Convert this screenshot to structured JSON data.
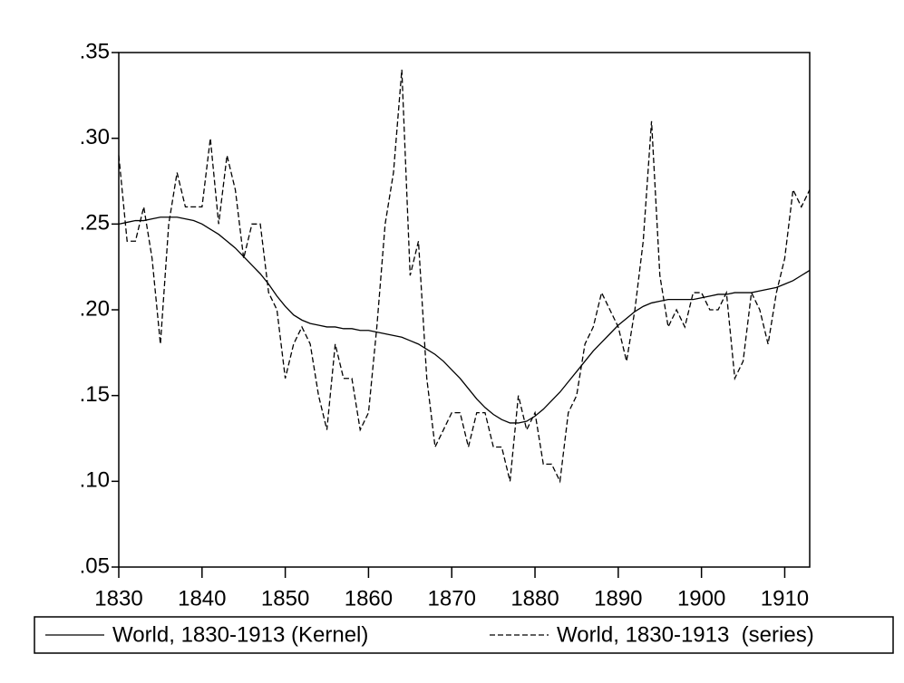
{
  "chart_data": {
    "type": "line",
    "x": [
      1830,
      1831,
      1832,
      1833,
      1834,
      1835,
      1836,
      1837,
      1838,
      1839,
      1840,
      1841,
      1842,
      1843,
      1844,
      1845,
      1846,
      1847,
      1848,
      1849,
      1850,
      1851,
      1852,
      1853,
      1854,
      1855,
      1856,
      1857,
      1858,
      1859,
      1860,
      1861,
      1862,
      1863,
      1864,
      1865,
      1866,
      1867,
      1868,
      1869,
      1870,
      1871,
      1872,
      1873,
      1874,
      1875,
      1876,
      1877,
      1878,
      1879,
      1880,
      1881,
      1882,
      1883,
      1884,
      1885,
      1886,
      1887,
      1888,
      1889,
      1890,
      1891,
      1892,
      1893,
      1894,
      1895,
      1896,
      1897,
      1898,
      1899,
      1900,
      1901,
      1902,
      1903,
      1904,
      1905,
      1906,
      1907,
      1908,
      1909,
      1910,
      1911,
      1912,
      1913
    ],
    "series": [
      {
        "name": "World, 1830-1913 (Kernel)",
        "color": "#000000",
        "style": "solid",
        "values": [
          0.25,
          0.251,
          0.252,
          0.252,
          0.253,
          0.254,
          0.254,
          0.254,
          0.253,
          0.252,
          0.25,
          0.247,
          0.244,
          0.24,
          0.236,
          0.231,
          0.226,
          0.221,
          0.215,
          0.208,
          0.202,
          0.197,
          0.194,
          0.192,
          0.191,
          0.19,
          0.19,
          0.189,
          0.189,
          0.188,
          0.188,
          0.187,
          0.186,
          0.185,
          0.184,
          0.182,
          0.18,
          0.177,
          0.174,
          0.17,
          0.165,
          0.16,
          0.154,
          0.148,
          0.143,
          0.139,
          0.136,
          0.134,
          0.134,
          0.135,
          0.138,
          0.142,
          0.147,
          0.152,
          0.158,
          0.164,
          0.17,
          0.176,
          0.181,
          0.186,
          0.191,
          0.195,
          0.199,
          0.202,
          0.204,
          0.205,
          0.206,
          0.206,
          0.206,
          0.206,
          0.207,
          0.208,
          0.209,
          0.209,
          0.21,
          0.21,
          0.21,
          0.211,
          0.212,
          0.213,
          0.215,
          0.217,
          0.22,
          0.223
        ]
      },
      {
        "name": "World, 1830-1913  (series)",
        "color": "#000000",
        "style": "dashed",
        "values": [
          0.29,
          0.24,
          0.24,
          0.26,
          0.23,
          0.18,
          0.25,
          0.28,
          0.26,
          0.26,
          0.26,
          0.3,
          0.25,
          0.29,
          0.27,
          0.23,
          0.25,
          0.25,
          0.21,
          0.2,
          0.16,
          0.18,
          0.19,
          0.18,
          0.15,
          0.13,
          0.18,
          0.16,
          0.16,
          0.13,
          0.14,
          0.19,
          0.25,
          0.28,
          0.34,
          0.22,
          0.24,
          0.16,
          0.12,
          0.13,
          0.14,
          0.14,
          0.12,
          0.14,
          0.14,
          0.12,
          0.12,
          0.1,
          0.15,
          0.13,
          0.14,
          0.11,
          0.11,
          0.1,
          0.14,
          0.15,
          0.18,
          0.19,
          0.21,
          0.2,
          0.19,
          0.17,
          0.2,
          0.24,
          0.31,
          0.22,
          0.19,
          0.2,
          0.19,
          0.21,
          0.21,
          0.2,
          0.2,
          0.21,
          0.16,
          0.17,
          0.21,
          0.2,
          0.18,
          0.21,
          0.23,
          0.27,
          0.26,
          0.27
        ]
      }
    ],
    "xlim": [
      1830,
      1913
    ],
    "xticks": [
      1830,
      1840,
      1850,
      1860,
      1870,
      1880,
      1890,
      1900,
      1910
    ],
    "ylim": [
      0.05,
      0.35
    ],
    "yticks": [
      {
        "value": 0.05,
        "label": ".05"
      },
      {
        "value": 0.1,
        "label": ".10"
      },
      {
        "value": 0.15,
        "label": ".15"
      },
      {
        "value": 0.2,
        "label": ".20"
      },
      {
        "value": 0.25,
        "label": ".25"
      },
      {
        "value": 0.3,
        "label": ".30"
      },
      {
        "value": 0.35,
        "label": ".35"
      }
    ],
    "grid": false,
    "legend": "bottom"
  }
}
